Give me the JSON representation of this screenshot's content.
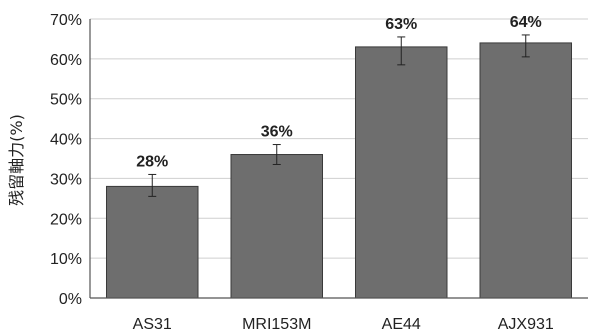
{
  "chart_data": {
    "type": "bar",
    "title": "",
    "xlabel": "",
    "ylabel": "残留軸力(%)",
    "categories": [
      "AS31",
      "MRI153M",
      "AE44",
      "AJX931"
    ],
    "values": [
      28,
      36,
      63,
      64
    ],
    "data_labels": [
      "28%",
      "36%",
      "63%",
      "64%"
    ],
    "error": [
      {
        "low": 25.5,
        "high": 31
      },
      {
        "low": 33.5,
        "high": 38.5
      },
      {
        "low": 58.5,
        "high": 65.5
      },
      {
        "low": 60.5,
        "high": 66
      }
    ],
    "ylim": [
      0,
      70
    ],
    "yticks": [
      0,
      10,
      20,
      30,
      40,
      50,
      60,
      70
    ],
    "ytick_labels": [
      "0%",
      "10%",
      "20%",
      "30%",
      "40%",
      "50%",
      "60%",
      "70%"
    ],
    "grid": true,
    "legend": "none",
    "colors": {
      "bar": "#6e6e6e",
      "bar_edge": "#3a3a3a",
      "grid": "#cfcfcf",
      "axis": "#555555",
      "text": "#222222"
    }
  }
}
